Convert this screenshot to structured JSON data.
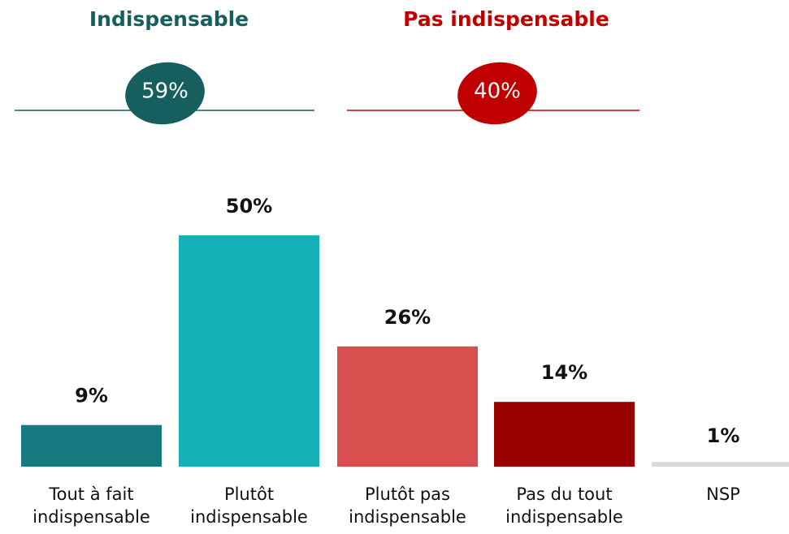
{
  "chart_data": {
    "type": "bar",
    "groups": [
      {
        "label": "Indispensable",
        "value": 59,
        "value_label": "59%",
        "color": "#175e5f"
      },
      {
        "label": "Pas indispensable",
        "value": 40,
        "value_label": "40%",
        "color": "#c00000"
      }
    ],
    "categories": [
      [
        "Tout à fait",
        "indispensable"
      ],
      [
        "Plutôt",
        "indispensable"
      ],
      [
        "Plutôt pas",
        "indispensable"
      ],
      [
        "Pas du tout",
        "indispensable"
      ],
      [
        "NSP"
      ]
    ],
    "values": [
      9,
      50,
      26,
      14,
      1
    ],
    "value_labels": [
      "9%",
      "50%",
      "26%",
      "14%",
      "1%"
    ],
    "colors": [
      "#177a80",
      "#15b0b8",
      "#d94f50",
      "#990000",
      "#d9d9d9"
    ]
  }
}
